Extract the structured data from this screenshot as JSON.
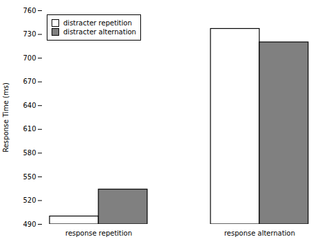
{
  "chart_data": {
    "type": "bar",
    "categories": [
      "response repetition",
      "response alternation"
    ],
    "series": [
      {
        "name": "distracter repetition",
        "color": "#ffffff",
        "values": [
          500,
          737
        ]
      },
      {
        "name": "distracter alternation",
        "color": "#808080",
        "values": [
          534,
          720
        ]
      }
    ],
    "ylabel": "Response Time (ms)",
    "ylim": [
      490,
      760
    ],
    "yticks": [
      490,
      520,
      550,
      580,
      610,
      640,
      670,
      700,
      730,
      760
    ],
    "legend": "upper left",
    "grid": false
  }
}
